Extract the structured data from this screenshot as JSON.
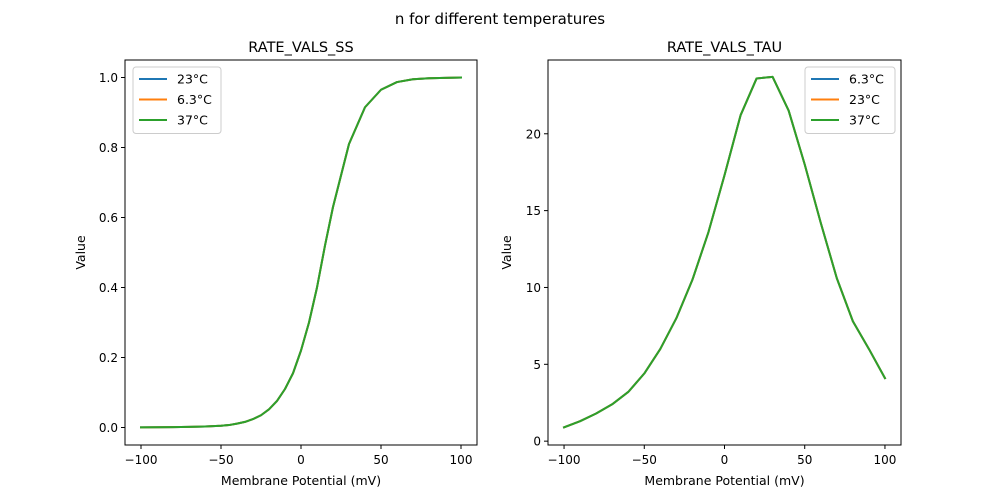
{
  "suptitle": "n for different temperatures",
  "chart_data": [
    {
      "type": "line",
      "title": "RATE_VALS_SS",
      "xlabel": "Membrane Potential (mV)",
      "ylabel": "Value",
      "xlim": [
        -110,
        110
      ],
      "ylim": [
        -0.05,
        1.05
      ],
      "xticks": [
        -100,
        -50,
        0,
        50,
        100
      ],
      "xtick_labels": [
        "−100",
        "−50",
        "0",
        "50",
        "100"
      ],
      "yticks": [
        0.0,
        0.2,
        0.4,
        0.6,
        0.8,
        1.0
      ],
      "ytick_labels": [
        "0.0",
        "0.2",
        "0.4",
        "0.6",
        "0.8",
        "1.0"
      ],
      "legend_position": "top-left",
      "grid": false,
      "x": [
        -100,
        -90,
        -80,
        -70,
        -60,
        -50,
        -45,
        -40,
        -35,
        -30,
        -25,
        -20,
        -15,
        -10,
        -5,
        0,
        5,
        10,
        15,
        20,
        30,
        40,
        50,
        60,
        70,
        80,
        90,
        100
      ],
      "series": [
        {
          "name": "23°C",
          "color": "#1f77b4",
          "values": [
            0.0005,
            0.0008,
            0.0012,
            0.0018,
            0.003,
            0.005,
            0.007,
            0.011,
            0.016,
            0.024,
            0.035,
            0.052,
            0.076,
            0.11,
            0.155,
            0.22,
            0.3,
            0.4,
            0.52,
            0.63,
            0.81,
            0.915,
            0.965,
            0.987,
            0.995,
            0.998,
            0.999,
            1.0
          ]
        },
        {
          "name": "6.3°C",
          "color": "#ff7f0e",
          "values": [
            0.0005,
            0.0008,
            0.0012,
            0.0018,
            0.003,
            0.005,
            0.007,
            0.011,
            0.016,
            0.024,
            0.035,
            0.052,
            0.076,
            0.11,
            0.155,
            0.22,
            0.3,
            0.4,
            0.52,
            0.63,
            0.81,
            0.915,
            0.965,
            0.987,
            0.995,
            0.998,
            0.999,
            1.0
          ]
        },
        {
          "name": "37°C",
          "color": "#2ca02c",
          "values": [
            0.0005,
            0.0008,
            0.0012,
            0.0018,
            0.003,
            0.005,
            0.007,
            0.011,
            0.016,
            0.024,
            0.035,
            0.052,
            0.076,
            0.11,
            0.155,
            0.22,
            0.3,
            0.4,
            0.52,
            0.63,
            0.81,
            0.915,
            0.965,
            0.987,
            0.995,
            0.998,
            0.999,
            1.0
          ]
        }
      ]
    },
    {
      "type": "line",
      "title": "RATE_VALS_TAU",
      "xlabel": "Membrane Potential (mV)",
      "ylabel": "Value",
      "xlim": [
        -110,
        110
      ],
      "ylim": [
        -0.25,
        24.8
      ],
      "xticks": [
        -100,
        -50,
        0,
        50,
        100
      ],
      "xtick_labels": [
        "−100",
        "−50",
        "0",
        "50",
        "100"
      ],
      "yticks": [
        0,
        5,
        10,
        15,
        20
      ],
      "ytick_labels": [
        "0",
        "5",
        "10",
        "15",
        "20"
      ],
      "legend_position": "top-right",
      "grid": false,
      "x": [
        -100,
        -90,
        -80,
        -70,
        -60,
        -50,
        -40,
        -30,
        -20,
        -10,
        0,
        10,
        20,
        30,
        40,
        50,
        60,
        70,
        80,
        90,
        100
      ],
      "series": [
        {
          "name": "6.3°C",
          "color": "#1f77b4",
          "values": [
            0.9,
            1.3,
            1.8,
            2.4,
            3.2,
            4.4,
            6.0,
            8.0,
            10.5,
            13.6,
            17.3,
            21.2,
            23.6,
            23.7,
            21.5,
            18.0,
            14.2,
            10.6,
            7.8,
            6.0,
            4.1
          ]
        },
        {
          "name": "23°C",
          "color": "#ff7f0e",
          "values": [
            0.9,
            1.3,
            1.8,
            2.4,
            3.2,
            4.4,
            6.0,
            8.0,
            10.5,
            13.6,
            17.3,
            21.2,
            23.6,
            23.7,
            21.5,
            18.0,
            14.2,
            10.6,
            7.8,
            6.0,
            4.1
          ]
        },
        {
          "name": "37°C",
          "color": "#2ca02c",
          "values": [
            0.9,
            1.3,
            1.8,
            2.4,
            3.2,
            4.4,
            6.0,
            8.0,
            10.5,
            13.6,
            17.3,
            21.2,
            23.6,
            23.7,
            21.5,
            18.0,
            14.2,
            10.6,
            7.8,
            6.0,
            4.1
          ]
        }
      ]
    }
  ]
}
